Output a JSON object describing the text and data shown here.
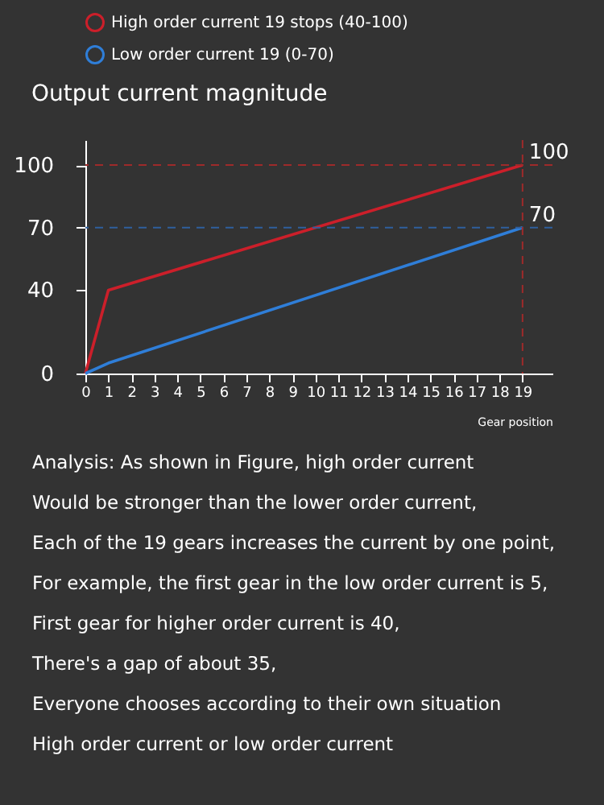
{
  "chart_data": {
    "type": "line",
    "xlabel": "Gear position",
    "ylabel": "Output current magnitude",
    "xlim": [
      0,
      20.3
    ],
    "xticks": [
      0,
      1,
      2,
      3,
      4,
      5,
      6,
      7,
      8,
      9,
      10,
      11,
      12,
      13,
      14,
      15,
      16,
      17,
      18,
      19
    ],
    "ylim": [
      0,
      112
    ],
    "yticks": [
      0,
      40,
      70,
      100
    ],
    "grid": false,
    "legend": "top",
    "series": [
      {
        "name": "High order current 19 stops (40-100)",
        "color": "#cc1f2a",
        "x": [
          0,
          1,
          19
        ],
        "values": [
          0,
          40,
          100
        ]
      },
      {
        "name": "Low order current 19 (0-70)",
        "color": "#2f7ed8",
        "x": [
          0,
          1,
          19
        ],
        "values": [
          0,
          5,
          70
        ]
      }
    ],
    "ref_lines": [
      {
        "axis": "y",
        "value": 100,
        "label": "100",
        "color": "#9e2a2a",
        "line_style": "dashed"
      },
      {
        "axis": "y",
        "value": 70,
        "label": "70",
        "color": "#2f5f9e",
        "line_style": "dashed"
      },
      {
        "axis": "x",
        "value": 19,
        "color": "#9e2a2a",
        "line_style": "dashed"
      }
    ],
    "annotations": [
      "Analysis: As shown in Figure, high order current",
      "Would be stronger than the lower order current,",
      "Each of the 19 gears increases the current by one point,",
      "For example, the first gear in the low order current is 5,",
      "First gear for higher order current is 40,",
      "There's a gap of about 35,",
      "Everyone chooses according to their own situation",
      "High order current or low order current"
    ]
  }
}
